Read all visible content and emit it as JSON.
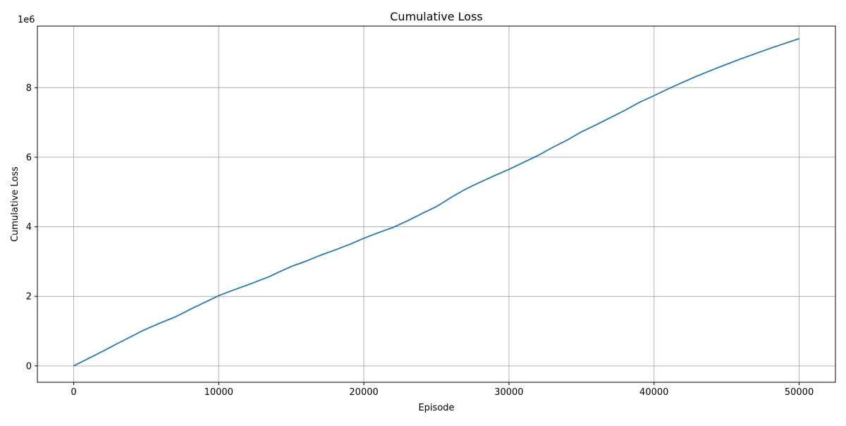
{
  "chart_data": {
    "type": "line",
    "title": "Cumulative Loss",
    "xlabel": "Episode",
    "ylabel": "Cumulative Loss",
    "y_offset_label": "1e6",
    "xlim": [
      -2500,
      52500
    ],
    "ylim": [
      -0.47,
      9.77
    ],
    "xticks": [
      0,
      10000,
      20000,
      30000,
      40000,
      50000
    ],
    "xtick_labels": [
      "0",
      "10000",
      "20000",
      "30000",
      "40000",
      "50000"
    ],
    "yticks": [
      0,
      2,
      4,
      6,
      8
    ],
    "ytick_labels": [
      "0",
      "2",
      "4",
      "6",
      "8"
    ],
    "grid": true,
    "legend": "none",
    "series": [
      {
        "color": "#1f77b4",
        "x": [
          0,
          1000,
          2000,
          2500,
          3000,
          4000,
          4500,
          5000,
          6000,
          7000,
          7500,
          8000,
          9000,
          10000,
          11000,
          12000,
          13000,
          13500,
          14000,
          15000,
          16000,
          17000,
          18000,
          19000,
          20000,
          21000,
          22000,
          23000,
          24000,
          25000,
          26000,
          27000,
          28000,
          29000,
          30000,
          31000,
          32000,
          33000,
          34000,
          35000,
          36000,
          37000,
          38000,
          39000,
          40000,
          41000,
          42000,
          43000,
          44000,
          45000,
          46000,
          47000,
          48000,
          49000,
          50000
        ],
        "y": [
          0.0,
          0.21,
          0.42,
          0.53,
          0.64,
          0.85,
          0.96,
          1.06,
          1.24,
          1.41,
          1.51,
          1.62,
          1.82,
          2.02,
          2.18,
          2.33,
          2.49,
          2.57,
          2.67,
          2.86,
          3.01,
          3.18,
          3.33,
          3.49,
          3.67,
          3.83,
          3.98,
          4.17,
          4.38,
          4.58,
          4.84,
          5.08,
          5.28,
          5.47,
          5.65,
          5.85,
          6.05,
          6.28,
          6.49,
          6.73,
          6.93,
          7.14,
          7.35,
          7.58,
          7.77,
          7.97,
          8.16,
          8.34,
          8.51,
          8.67,
          8.83,
          8.98,
          9.13,
          9.27,
          9.41
        ]
      }
    ]
  }
}
